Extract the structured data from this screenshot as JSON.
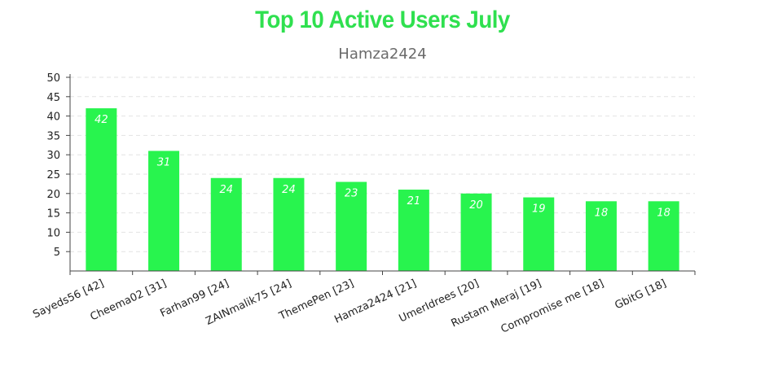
{
  "chart_data": {
    "type": "bar",
    "title": "Top 10 Active Users July",
    "subtitle": "Hamza2424",
    "categories": [
      "Sayeds56 [42]",
      "Cheema02 [31]",
      "Farhan99 [24]",
      "ZAINmalik75 [24]",
      "ThemePen [23]",
      "Hamza2424 [21]",
      "UmerIdrees [20]",
      "Rustam Meraj [19]",
      "Compromise me [18]",
      "GbitG [18]"
    ],
    "values": [
      42,
      31,
      24,
      24,
      23,
      21,
      20,
      19,
      18,
      18
    ],
    "ylim": [
      0,
      50
    ],
    "yticks": [
      5,
      10,
      15,
      20,
      25,
      30,
      35,
      40,
      45,
      50
    ],
    "grid": true,
    "bar_color": "#28f44e",
    "title_color": "#2fe04f"
  }
}
